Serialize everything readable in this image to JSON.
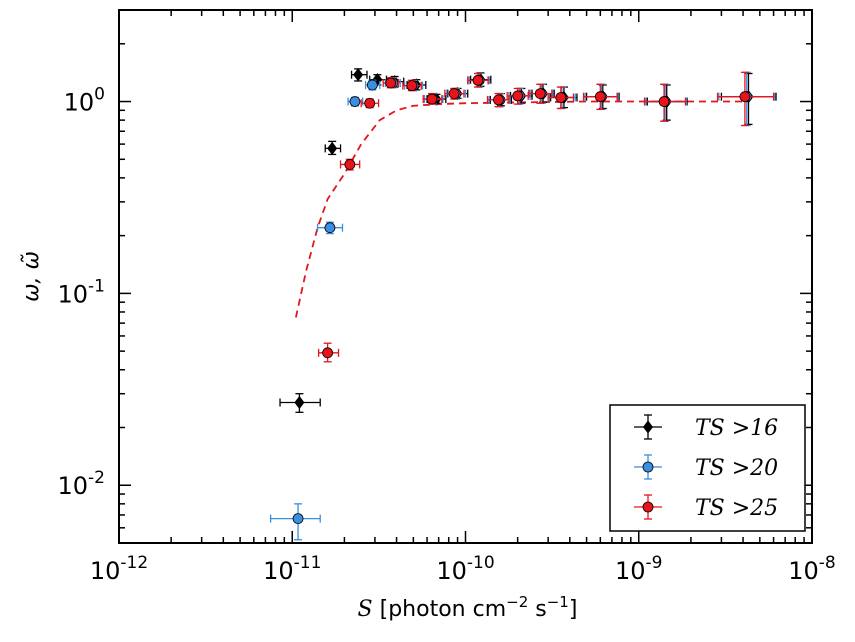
{
  "chart_data": {
    "type": "scatter",
    "x_scale": "log",
    "y_scale": "log",
    "xlim": [
      1e-12,
      1e-08
    ],
    "ylim": [
      0.005,
      3.0
    ],
    "x_ticks": [
      {
        "value": 1e-12,
        "base": "10",
        "exp": "-12"
      },
      {
        "value": 1e-11,
        "base": "10",
        "exp": "-11"
      },
      {
        "value": 1e-10,
        "base": "10",
        "exp": "-10"
      },
      {
        "value": 1e-09,
        "base": "10",
        "exp": "-9"
      },
      {
        "value": 1e-08,
        "base": "10",
        "exp": "-8"
      }
    ],
    "y_ticks": [
      {
        "value": 0.01,
        "base": "10",
        "exp": "-2"
      },
      {
        "value": 0.1,
        "base": "10",
        "exp": "-1"
      },
      {
        "value": 1.0,
        "base": "10",
        "exp": "0"
      }
    ],
    "xlabel": {
      "symbol": "S",
      "text": " [photon cm",
      "exp1": "−2",
      "mid": " s",
      "exp2": "−1",
      "end": "]"
    },
    "ylabel": "ω, ω̃",
    "legend_position": "bottom-right",
    "series": [
      {
        "name": "TS > 16",
        "label": "TS >16",
        "color": "#000000",
        "marker": "diamond",
        "points": [
          {
            "x": 1.1e-11,
            "y": 0.027,
            "xlo": 8.5e-12,
            "xhi": 1.45e-11,
            "ylo": 0.024,
            "yhi": 0.03
          },
          {
            "x": 1.7e-11,
            "y": 0.57,
            "xlo": 1.55e-11,
            "xhi": 1.9e-11,
            "ylo": 0.53,
            "yhi": 0.62
          },
          {
            "x": 2.4e-11,
            "y": 1.38,
            "xlo": 2.2e-11,
            "xhi": 2.7e-11,
            "ylo": 1.28,
            "yhi": 1.48
          },
          {
            "x": 3.1e-11,
            "y": 1.3,
            "xlo": 2.8e-11,
            "xhi": 3.5e-11,
            "ylo": 1.22,
            "yhi": 1.38
          },
          {
            "x": 3.9e-11,
            "y": 1.27,
            "xlo": 3.5e-11,
            "xhi": 4.4e-11,
            "ylo": 1.19,
            "yhi": 1.35
          },
          {
            "x": 5.2e-11,
            "y": 1.22,
            "xlo": 4.6e-11,
            "xhi": 5.9e-11,
            "ylo": 1.15,
            "yhi": 1.3
          },
          {
            "x": 6.8e-11,
            "y": 1.03,
            "xlo": 6e-11,
            "xhi": 7.7e-11,
            "ylo": 0.98,
            "yhi": 1.09
          },
          {
            "x": 9e-11,
            "y": 1.1,
            "xlo": 7.9e-11,
            "xhi": 1.03e-10,
            "ylo": 1.04,
            "yhi": 1.17
          },
          {
            "x": 1.22e-10,
            "y": 1.3,
            "xlo": 1.07e-10,
            "xhi": 1.4e-10,
            "ylo": 1.2,
            "yhi": 1.41
          },
          {
            "x": 1.6e-10,
            "y": 1.02,
            "xlo": 1.39e-10,
            "xhi": 1.84e-10,
            "ylo": 0.95,
            "yhi": 1.1
          },
          {
            "x": 2.1e-10,
            "y": 1.07,
            "xlo": 1.82e-10,
            "xhi": 2.42e-10,
            "ylo": 0.98,
            "yhi": 1.17
          },
          {
            "x": 2.8e-10,
            "y": 1.1,
            "xlo": 2.42e-10,
            "xhi": 3.25e-10,
            "ylo": 0.99,
            "yhi": 1.23
          },
          {
            "x": 3.7e-10,
            "y": 1.05,
            "xlo": 3.1e-10,
            "xhi": 4.4e-10,
            "ylo": 0.93,
            "yhi": 1.19
          },
          {
            "x": 6.2e-10,
            "y": 1.06,
            "xlo": 5e-10,
            "xhi": 7.7e-10,
            "ylo": 0.92,
            "yhi": 1.22
          },
          {
            "x": 1.45e-09,
            "y": 1.0,
            "xlo": 1.12e-09,
            "xhi": 1.9e-09,
            "ylo": 0.8,
            "yhi": 1.22
          },
          {
            "x": 4.3e-09,
            "y": 1.06,
            "xlo": 3e-09,
            "xhi": 6.2e-09,
            "ylo": 0.76,
            "yhi": 1.4
          }
        ]
      },
      {
        "name": "TS > 20",
        "label": "TS >20",
        "color": "#3b8ee0",
        "marker": "circle",
        "points": [
          {
            "x": 1.08e-11,
            "y": 0.0067,
            "xlo": 7.5e-12,
            "xhi": 1.45e-11,
            "ylo": 0.0052,
            "yhi": 0.008
          },
          {
            "x": 1.65e-11,
            "y": 0.22,
            "xlo": 1.4e-11,
            "xhi": 1.95e-11,
            "ylo": 0.205,
            "yhi": 0.235
          },
          {
            "x": 2.3e-11,
            "y": 1.0,
            "xlo": 2.1e-11,
            "xhi": 2.55e-11,
            "ylo": 0.95,
            "yhi": 1.05
          },
          {
            "x": 2.9e-11,
            "y": 1.22,
            "xlo": 2.65e-11,
            "xhi": 3.2e-11,
            "ylo": 1.15,
            "yhi": 1.29
          },
          {
            "x": 3.8e-11,
            "y": 1.25,
            "xlo": 3.45e-11,
            "xhi": 4.2e-11,
            "ylo": 1.18,
            "yhi": 1.33
          },
          {
            "x": 5e-11,
            "y": 1.21,
            "xlo": 4.45e-11,
            "xhi": 5.65e-11,
            "ylo": 1.14,
            "yhi": 1.29
          },
          {
            "x": 6.5e-11,
            "y": 1.03,
            "xlo": 5.8e-11,
            "xhi": 7.4e-11,
            "ylo": 0.97,
            "yhi": 1.1
          },
          {
            "x": 8.8e-11,
            "y": 1.1,
            "xlo": 7.8e-11,
            "xhi": 1e-10,
            "ylo": 1.03,
            "yhi": 1.17
          },
          {
            "x": 1.2e-10,
            "y": 1.29,
            "xlo": 1.05e-10,
            "xhi": 1.37e-10,
            "ylo": 1.19,
            "yhi": 1.4
          },
          {
            "x": 1.58e-10,
            "y": 1.02,
            "xlo": 1.37e-10,
            "xhi": 1.81e-10,
            "ylo": 0.94,
            "yhi": 1.1
          },
          {
            "x": 2.05e-10,
            "y": 1.07,
            "xlo": 1.78e-10,
            "xhi": 2.36e-10,
            "ylo": 0.97,
            "yhi": 1.17
          },
          {
            "x": 2.75e-10,
            "y": 1.1,
            "xlo": 2.36e-10,
            "xhi": 3.2e-10,
            "ylo": 0.98,
            "yhi": 1.23
          },
          {
            "x": 3.6e-10,
            "y": 1.05,
            "xlo": 3.05e-10,
            "xhi": 4.3e-10,
            "ylo": 0.92,
            "yhi": 1.19
          },
          {
            "x": 6.1e-10,
            "y": 1.06,
            "xlo": 4.9e-10,
            "xhi": 7.6e-10,
            "ylo": 0.91,
            "yhi": 1.23
          },
          {
            "x": 1.42e-09,
            "y": 1.0,
            "xlo": 1.1e-09,
            "xhi": 1.88e-09,
            "ylo": 0.79,
            "yhi": 1.23
          },
          {
            "x": 4.2e-09,
            "y": 1.06,
            "xlo": 2.9e-09,
            "xhi": 6.1e-09,
            "ylo": 0.75,
            "yhi": 1.42
          }
        ]
      },
      {
        "name": "TS > 25",
        "label": "TS >25",
        "color": "#e8141b",
        "marker": "circle",
        "points": [
          {
            "x": 1.6e-11,
            "y": 0.049,
            "xlo": 1.42e-11,
            "xhi": 1.85e-11,
            "ylo": 0.044,
            "yhi": 0.055
          },
          {
            "x": 2.15e-11,
            "y": 0.47,
            "xlo": 1.9e-11,
            "xhi": 2.45e-11,
            "ylo": 0.44,
            "yhi": 0.5
          },
          {
            "x": 2.8e-11,
            "y": 0.98,
            "xlo": 2.5e-11,
            "xhi": 3.15e-11,
            "ylo": 0.93,
            "yhi": 1.03
          },
          {
            "x": 3.7e-11,
            "y": 1.25,
            "xlo": 3.35e-11,
            "xhi": 4.1e-11,
            "ylo": 1.18,
            "yhi": 1.33
          },
          {
            "x": 4.9e-11,
            "y": 1.21,
            "xlo": 4.35e-11,
            "xhi": 5.55e-11,
            "ylo": 1.14,
            "yhi": 1.29
          },
          {
            "x": 6.4e-11,
            "y": 1.03,
            "xlo": 5.7e-11,
            "xhi": 7.3e-11,
            "ylo": 0.97,
            "yhi": 1.1
          },
          {
            "x": 8.6e-11,
            "y": 1.1,
            "xlo": 7.6e-11,
            "xhi": 9.8e-11,
            "ylo": 1.03,
            "yhi": 1.17
          },
          {
            "x": 1.18e-10,
            "y": 1.29,
            "xlo": 1.03e-10,
            "xhi": 1.35e-10,
            "ylo": 1.19,
            "yhi": 1.4
          },
          {
            "x": 1.55e-10,
            "y": 1.02,
            "xlo": 1.34e-10,
            "xhi": 1.78e-10,
            "ylo": 0.94,
            "yhi": 1.1
          },
          {
            "x": 2e-10,
            "y": 1.07,
            "xlo": 1.74e-10,
            "xhi": 2.3e-10,
            "ylo": 0.97,
            "yhi": 1.17
          },
          {
            "x": 2.7e-10,
            "y": 1.1,
            "xlo": 2.32e-10,
            "xhi": 3.15e-10,
            "ylo": 0.98,
            "yhi": 1.23
          },
          {
            "x": 3.55e-10,
            "y": 1.05,
            "xlo": 3e-10,
            "xhi": 4.2e-10,
            "ylo": 0.92,
            "yhi": 1.19
          },
          {
            "x": 6e-10,
            "y": 1.06,
            "xlo": 4.8e-10,
            "xhi": 7.5e-10,
            "ylo": 0.91,
            "yhi": 1.23
          },
          {
            "x": 1.4e-09,
            "y": 1.0,
            "xlo": 1.08e-09,
            "xhi": 1.86e-09,
            "ylo": 0.79,
            "yhi": 1.23
          },
          {
            "x": 4.1e-09,
            "y": 1.06,
            "xlo": 2.85e-09,
            "xhi": 6e-09,
            "ylo": 0.75,
            "yhi": 1.42
          }
        ]
      }
    ],
    "model_curve": {
      "color": "#e8141b",
      "style": "dashed",
      "points": [
        {
          "x": 1.05e-11,
          "y": 0.075
        },
        {
          "x": 1.2e-11,
          "y": 0.13
        },
        {
          "x": 1.4e-11,
          "y": 0.22
        },
        {
          "x": 1.6e-11,
          "y": 0.31
        },
        {
          "x": 2e-11,
          "y": 0.42
        },
        {
          "x": 2.5e-11,
          "y": 0.6
        },
        {
          "x": 3.2e-11,
          "y": 0.8
        },
        {
          "x": 4e-11,
          "y": 0.9
        },
        {
          "x": 5e-11,
          "y": 0.95
        },
        {
          "x": 7e-11,
          "y": 0.97
        },
        {
          "x": 1e-10,
          "y": 0.98
        },
        {
          "x": 2e-10,
          "y": 0.99
        },
        {
          "x": 5e-10,
          "y": 1.0
        },
        {
          "x": 1e-09,
          "y": 1.0
        },
        {
          "x": 4.2e-09,
          "y": 1.0
        }
      ]
    }
  }
}
